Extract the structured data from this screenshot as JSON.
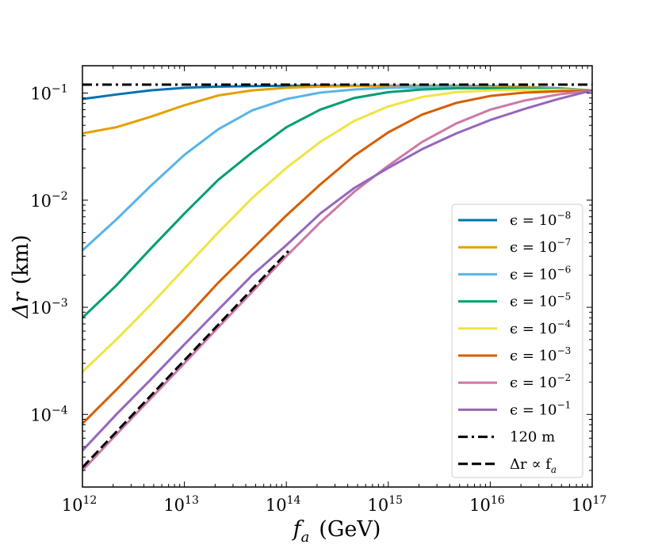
{
  "chart_data": {
    "type": "line",
    "title": "",
    "xscale": "log",
    "yscale": "log",
    "xlim": [
      1000000000000.0,
      1e+17
    ],
    "ylim": [
      2.1e-05,
      0.18
    ],
    "xlabel": {
      "main": "f",
      "sub": "a",
      "unit": "(GeV)"
    },
    "ylabel": {
      "main": "Δr",
      "unit": "(km)"
    },
    "xticks": [
      {
        "value": 1000000000000.0,
        "base": "10",
        "exp": "12"
      },
      {
        "value": 10000000000000.0,
        "base": "10",
        "exp": "13"
      },
      {
        "value": 100000000000000.0,
        "base": "10",
        "exp": "14"
      },
      {
        "value": 1000000000000000.0,
        "base": "10",
        "exp": "15"
      },
      {
        "value": 1e+16,
        "base": "10",
        "exp": "16"
      },
      {
        "value": 1e+17,
        "base": "10",
        "exp": "17"
      }
    ],
    "yticks": [
      {
        "value": 0.0001,
        "base": "10",
        "exp": "−4"
      },
      {
        "value": 0.001,
        "base": "10",
        "exp": "−3"
      },
      {
        "value": 0.01,
        "base": "10",
        "exp": "−2"
      },
      {
        "value": 0.1,
        "base": "10",
        "exp": "−1"
      }
    ],
    "x": [
      1000000000000.0,
      2150000000000.0,
      4640000000000.0,
      10000000000000.0,
      21500000000000.0,
      46400000000000.0,
      100000000000000.0,
      215000000000000.0,
      464000000000000.0,
      1000000000000000.0,
      2150000000000000.0,
      4640000000000000.0,
      1e+16,
      2.15e+16,
      4.64e+16,
      1e+17
    ],
    "series": [
      {
        "name": "ε = 10^−8",
        "eps": "ϵ = 10",
        "exp": "−8",
        "color": "#0072b2",
        "dash": "solid",
        "values": [
          0.088,
          0.097,
          0.106,
          0.112,
          0.115,
          0.116,
          0.117,
          0.117,
          0.117,
          0.117,
          0.117,
          0.117,
          0.116,
          0.114,
          0.111,
          0.106
        ]
      },
      {
        "name": "ε = 10^−7",
        "eps": "ϵ = 10",
        "exp": "−7",
        "color": "#e69f00",
        "dash": "solid",
        "values": [
          0.042,
          0.048,
          0.06,
          0.077,
          0.095,
          0.106,
          0.112,
          0.115,
          0.116,
          0.116,
          0.116,
          0.116,
          0.115,
          0.113,
          0.11,
          0.106
        ]
      },
      {
        "name": "ε = 10^−6",
        "eps": "ϵ = 10",
        "exp": "−6",
        "color": "#56b4e9",
        "dash": "solid",
        "values": [
          0.0034,
          0.0066,
          0.0135,
          0.0265,
          0.046,
          0.069,
          0.088,
          0.101,
          0.108,
          0.112,
          0.113,
          0.113,
          0.112,
          0.111,
          0.109,
          0.106
        ]
      },
      {
        "name": "ε = 10^−5",
        "eps": "ϵ = 10",
        "exp": "−5",
        "color": "#009e73",
        "dash": "solid",
        "values": [
          0.0008,
          0.0016,
          0.0035,
          0.0075,
          0.0155,
          0.028,
          0.048,
          0.07,
          0.09,
          0.102,
          0.108,
          0.111,
          0.111,
          0.11,
          0.108,
          0.106
        ]
      },
      {
        "name": "ε = 10^−4",
        "eps": "ϵ = 10",
        "exp": "−4",
        "color": "#f0e442",
        "dash": "solid",
        "values": [
          0.00025,
          0.0005,
          0.00105,
          0.0023,
          0.005,
          0.0105,
          0.02,
          0.035,
          0.055,
          0.075,
          0.092,
          0.102,
          0.106,
          0.107,
          0.107,
          0.106
        ]
      },
      {
        "name": "ε = 10^−3",
        "eps": "ϵ = 10",
        "exp": "−3",
        "color": "#d55e00",
        "dash": "solid",
        "values": [
          8.2e-05,
          0.00017,
          0.00036,
          0.00077,
          0.0017,
          0.0035,
          0.0072,
          0.014,
          0.026,
          0.043,
          0.063,
          0.081,
          0.094,
          0.101,
          0.104,
          0.106
        ]
      },
      {
        "name": "ε = 10^−2",
        "eps": "ϵ = 10",
        "exp": "−2",
        "color": "#cc79a7",
        "dash": "solid",
        "values": [
          3e-05,
          6.5e-05,
          0.00014,
          0.0003,
          0.00065,
          0.0014,
          0.003,
          0.0062,
          0.012,
          0.021,
          0.035,
          0.052,
          0.07,
          0.085,
          0.097,
          0.106
        ]
      },
      {
        "name": "ε = 10^−1",
        "eps": "ϵ = 10",
        "exp": "−1",
        "color": "#9467bd",
        "dash": "solid",
        "values": [
          4.6e-05,
          0.0001,
          0.00021,
          0.00045,
          0.00095,
          0.002,
          0.0038,
          0.0075,
          0.013,
          0.02,
          0.03,
          0.042,
          0.056,
          0.071,
          0.088,
          0.106
        ]
      }
    ],
    "reference_lines": [
      {
        "name": "120 m",
        "label": "120 m",
        "color": "#000000",
        "dash": "dashdot",
        "x": [
          1000000000000.0,
          1e+17
        ],
        "values": [
          0.12,
          0.12
        ]
      },
      {
        "name": "Δr ∝ f_a",
        "label_main": "Δr ∝ f",
        "label_sub": "a",
        "color": "#000000",
        "dash": "dashed",
        "x": [
          1000000000000.0,
          105000000000000.0
        ],
        "values": [
          3.2e-05,
          0.00336
        ]
      }
    ],
    "legend": "lower-right"
  }
}
